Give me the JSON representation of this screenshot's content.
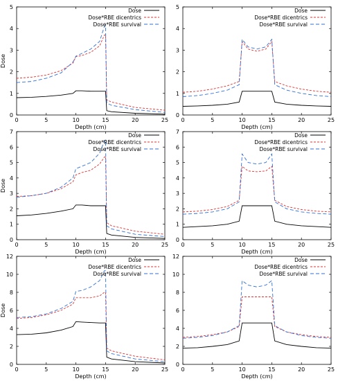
{
  "figure": {
    "background": "#ffffff"
  },
  "legend_labels": [
    "Dose",
    "Dose*RBE dicentrics",
    "Dose*RBE survival"
  ],
  "series_styles": [
    {
      "color": "#000000",
      "dash": ""
    },
    {
      "color": "#e03030",
      "dash": "3,2"
    },
    {
      "color": "#2f6fd6",
      "dash": "5,3"
    }
  ],
  "chart_data": [
    {
      "type": "line",
      "xlabel": "Depth (cm)",
      "ylabel": "Dose",
      "xlim": [
        0,
        25
      ],
      "ylim": [
        0,
        5
      ],
      "xticks": [
        0,
        5,
        10,
        15,
        20,
        25
      ],
      "yticks": [
        0,
        1,
        2,
        3,
        4,
        5
      ],
      "legend": "top-right",
      "x": [
        0,
        2.5,
        5,
        7.5,
        9.5,
        10,
        11,
        12.5,
        14,
        14.8,
        15,
        15.2,
        16,
        20,
        25
      ],
      "series": [
        {
          "name": "Dose",
          "values": [
            0.8,
            0.82,
            0.86,
            0.92,
            1.0,
            1.12,
            1.12,
            1.1,
            1.1,
            1.1,
            1.1,
            0.2,
            0.15,
            0.08,
            0.04
          ]
        },
        {
          "name": "Dose*RBE dicentrics",
          "values": [
            1.7,
            1.75,
            1.85,
            2.05,
            2.4,
            2.7,
            2.75,
            2.9,
            3.2,
            3.7,
            3.7,
            0.7,
            0.6,
            0.35,
            0.22
          ]
        },
        {
          "name": "Dose*RBE survival",
          "values": [
            1.5,
            1.55,
            1.7,
            1.95,
            2.45,
            2.72,
            2.85,
            3.05,
            3.4,
            4.1,
            4.15,
            0.55,
            0.45,
            0.25,
            0.12
          ]
        }
      ]
    },
    {
      "type": "line",
      "xlabel": "Depth (cm)",
      "ylabel": "",
      "xlim": [
        0,
        25
      ],
      "ylim": [
        0,
        5
      ],
      "xticks": [
        0,
        5,
        10,
        15,
        20,
        25
      ],
      "yticks": [
        0,
        1,
        2,
        3,
        4,
        5
      ],
      "legend": "top-right",
      "x": [
        0,
        2.5,
        5,
        7.5,
        9.5,
        10,
        11,
        12.5,
        14,
        15,
        15.5,
        17.5,
        20,
        22.5,
        25
      ],
      "series": [
        {
          "name": "Dose",
          "values": [
            0.4,
            0.42,
            0.45,
            0.5,
            0.6,
            1.1,
            1.1,
            1.1,
            1.1,
            1.1,
            0.6,
            0.5,
            0.45,
            0.42,
            0.4
          ]
        },
        {
          "name": "Dose*RBE dicentrics",
          "values": [
            1.05,
            1.1,
            1.2,
            1.35,
            1.55,
            3.4,
            3.05,
            2.95,
            3.05,
            3.4,
            1.55,
            1.35,
            1.2,
            1.1,
            1.05
          ]
        },
        {
          "name": "Dose*RBE survival",
          "values": [
            0.85,
            0.9,
            1.0,
            1.15,
            1.4,
            3.5,
            3.15,
            3.05,
            3.15,
            3.5,
            1.4,
            1.15,
            1.0,
            0.9,
            0.85
          ]
        }
      ]
    },
    {
      "type": "line",
      "xlabel": "Depth (cm)",
      "ylabel": "Dose",
      "xlim": [
        0,
        25
      ],
      "ylim": [
        0,
        7
      ],
      "xticks": [
        0,
        5,
        10,
        15,
        20,
        25
      ],
      "yticks": [
        0,
        1,
        2,
        3,
        4,
        5,
        6,
        7
      ],
      "legend": "top-right",
      "x": [
        0,
        2.5,
        5,
        7.5,
        9.5,
        10,
        11,
        12.5,
        14,
        14.8,
        15,
        15.2,
        16,
        20,
        25
      ],
      "series": [
        {
          "name": "Dose",
          "values": [
            1.55,
            1.6,
            1.7,
            1.85,
            2.0,
            2.25,
            2.25,
            2.2,
            2.2,
            2.2,
            2.2,
            0.4,
            0.3,
            0.15,
            0.08
          ]
        },
        {
          "name": "Dose*RBE dicentrics",
          "values": [
            2.8,
            2.85,
            3.0,
            3.3,
            3.75,
            4.2,
            4.35,
            4.5,
            4.9,
            5.35,
            5.4,
            1.1,
            0.9,
            0.55,
            0.35
          ]
        },
        {
          "name": "Dose*RBE survival",
          "values": [
            2.75,
            2.85,
            3.0,
            3.4,
            4.0,
            4.6,
            4.75,
            5.0,
            5.6,
            6.4,
            6.45,
            0.9,
            0.7,
            0.35,
            0.2
          ]
        }
      ]
    },
    {
      "type": "line",
      "xlabel": "Depth (cm)",
      "ylabel": "",
      "xlim": [
        0,
        25
      ],
      "ylim": [
        0,
        7
      ],
      "xticks": [
        0,
        5,
        10,
        15,
        20,
        25
      ],
      "yticks": [
        0,
        1,
        2,
        3,
        4,
        5,
        6,
        7
      ],
      "legend": "top-right",
      "x": [
        0,
        2.5,
        5,
        7.5,
        9.5,
        10,
        11,
        12.5,
        14,
        15,
        15.5,
        17.5,
        20,
        22.5,
        25
      ],
      "series": [
        {
          "name": "Dose",
          "values": [
            0.8,
            0.85,
            0.9,
            1.0,
            1.2,
            2.2,
            2.2,
            2.2,
            2.2,
            2.2,
            1.2,
            1.0,
            0.9,
            0.85,
            0.8
          ]
        },
        {
          "name": "Dose*RBE dicentrics",
          "values": [
            1.8,
            1.85,
            1.95,
            2.15,
            2.55,
            4.75,
            4.45,
            4.4,
            4.45,
            4.75,
            2.55,
            2.15,
            1.95,
            1.85,
            1.8
          ]
        },
        {
          "name": "Dose*RBE survival",
          "values": [
            1.65,
            1.7,
            1.8,
            2.0,
            2.45,
            5.55,
            5.0,
            4.9,
            5.0,
            5.55,
            2.45,
            2.0,
            1.8,
            1.7,
            1.65
          ]
        }
      ]
    },
    {
      "type": "line",
      "xlabel": "Depth (cm)",
      "ylabel": "Dose",
      "xlim": [
        0,
        25
      ],
      "ylim": [
        0,
        12
      ],
      "xticks": [
        0,
        5,
        10,
        15,
        20,
        25
      ],
      "yticks": [
        0,
        2,
        4,
        6,
        8,
        10,
        12
      ],
      "legend": "top-right",
      "x": [
        0,
        2.5,
        5,
        7.5,
        9.5,
        10,
        11,
        12.5,
        14,
        14.8,
        15,
        15.2,
        16,
        20,
        25
      ],
      "series": [
        {
          "name": "Dose",
          "values": [
            3.3,
            3.35,
            3.5,
            3.8,
            4.2,
            4.75,
            4.7,
            4.65,
            4.6,
            4.6,
            4.6,
            0.8,
            0.6,
            0.3,
            0.15
          ]
        },
        {
          "name": "Dose*RBE dicentrics",
          "values": [
            5.1,
            5.2,
            5.5,
            6.0,
            6.7,
            7.4,
            7.4,
            7.4,
            7.6,
            8.0,
            8.0,
            1.8,
            1.5,
            0.9,
            0.5
          ]
        },
        {
          "name": "Dose*RBE survival",
          "values": [
            5.2,
            5.3,
            5.6,
            6.2,
            7.0,
            8.1,
            8.2,
            8.6,
            9.3,
            10.4,
            10.4,
            1.5,
            1.2,
            0.6,
            0.3
          ]
        }
      ]
    },
    {
      "type": "line",
      "xlabel": "Depth (cm)",
      "ylabel": "",
      "xlim": [
        0,
        25
      ],
      "ylim": [
        0,
        12
      ],
      "xticks": [
        0,
        5,
        10,
        15,
        20,
        25
      ],
      "yticks": [
        0,
        2,
        4,
        6,
        8,
        10,
        12
      ],
      "legend": "top-right",
      "x": [
        0,
        2.5,
        5,
        7.5,
        9.5,
        10,
        11,
        12.5,
        14,
        15,
        15.5,
        17.5,
        20,
        22.5,
        25
      ],
      "series": [
        {
          "name": "Dose",
          "values": [
            1.8,
            1.85,
            2.0,
            2.2,
            2.6,
            4.6,
            4.6,
            4.6,
            4.6,
            4.6,
            2.6,
            2.2,
            2.0,
            1.85,
            1.8
          ]
        },
        {
          "name": "Dose*RBE dicentrics",
          "values": [
            3.0,
            3.1,
            3.3,
            3.6,
            4.2,
            7.5,
            7.5,
            7.5,
            7.5,
            7.5,
            4.2,
            3.6,
            3.3,
            3.1,
            3.0
          ]
        },
        {
          "name": "Dose*RBE survival",
          "values": [
            2.9,
            3.0,
            3.2,
            3.6,
            4.3,
            9.3,
            8.8,
            8.6,
            8.8,
            9.3,
            4.3,
            3.6,
            3.2,
            3.0,
            2.9
          ]
        }
      ]
    }
  ]
}
